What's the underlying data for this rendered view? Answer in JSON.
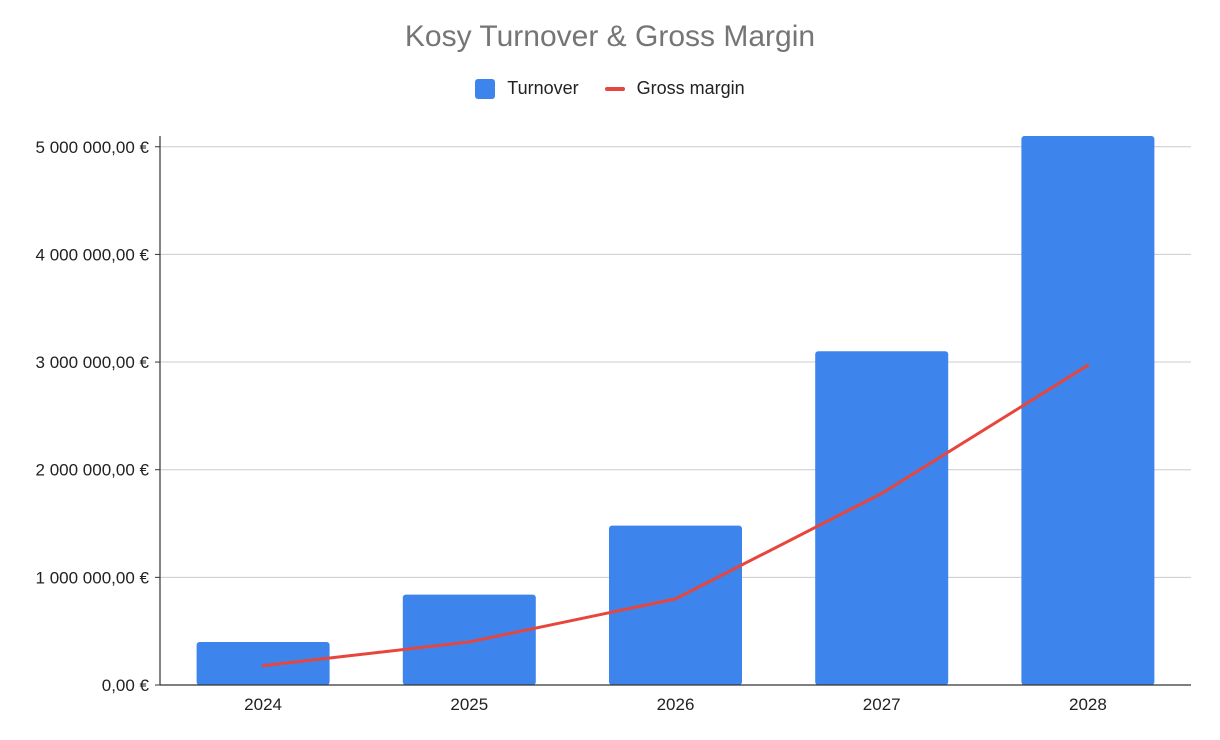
{
  "chart_data": {
    "type": "bar",
    "title": "Kosy Turnover & Gross Margin",
    "categories": [
      "2024",
      "2025",
      "2026",
      "2027",
      "2028"
    ],
    "series": [
      {
        "name": "Turnover",
        "type": "bar",
        "color": "#3d85ec",
        "values": [
          400000,
          840000,
          1480000,
          3100000,
          5100000
        ]
      },
      {
        "name": "Gross margin",
        "type": "line",
        "color": "#e8453c",
        "values": [
          180000,
          400000,
          800000,
          1780000,
          2970000
        ]
      }
    ],
    "ylim": [
      0,
      5100000
    ],
    "yticks": [
      0,
      1000000,
      2000000,
      3000000,
      4000000,
      5000000
    ],
    "ytick_labels": [
      "0,00 €",
      "1 000 000,00 €",
      "2 000 000,00 €",
      "3 000 000,00 €",
      "4 000 000,00 €",
      "5 000 000,00 €"
    ],
    "xlabel": "",
    "ylabel": "",
    "grid": true,
    "legend_position": "top"
  }
}
